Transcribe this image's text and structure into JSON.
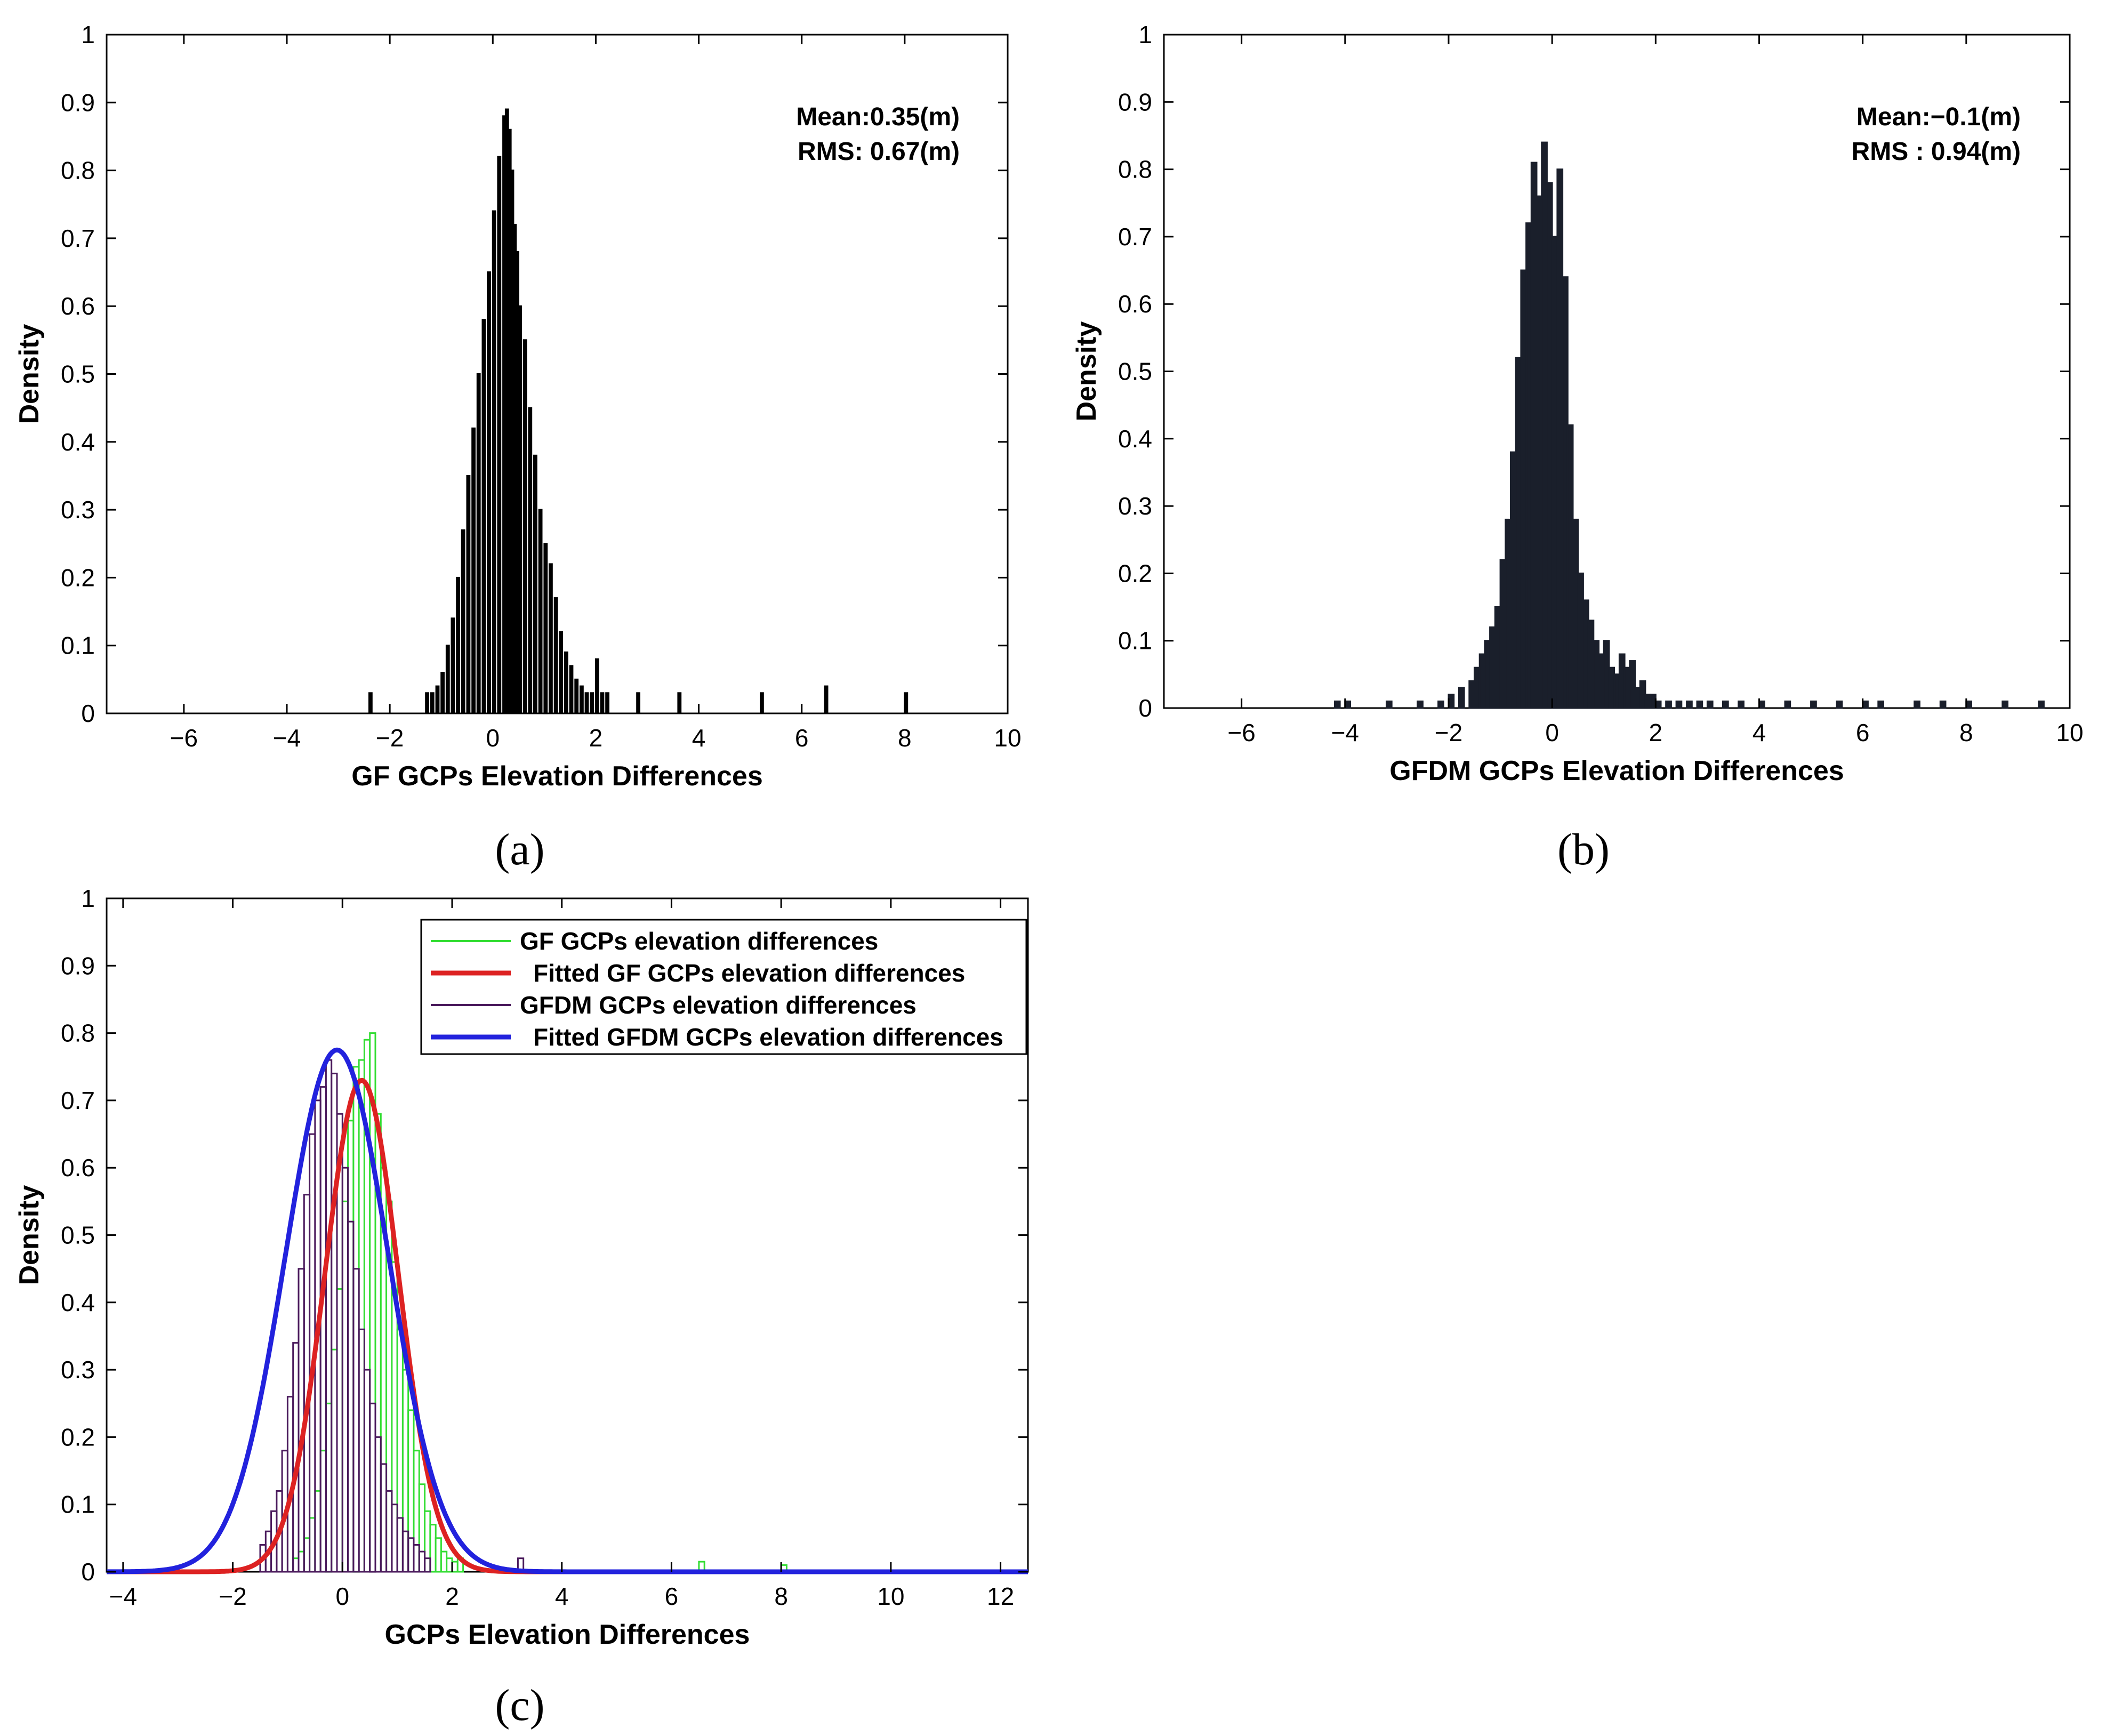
{
  "captions": [
    "(a)",
    "(b)",
    "(c)"
  ],
  "chart_data": [
    {
      "type": "histogram",
      "panel": "a",
      "title": "",
      "xlabel": "GF GCPs Elevation Differences",
      "ylabel": "Density",
      "xlim": [
        -7.5,
        10
      ],
      "ylim": [
        0,
        1
      ],
      "xticks": [
        -6,
        -4,
        -2,
        0,
        2,
        4,
        6,
        8,
        10
      ],
      "yticks": [
        0,
        0.1,
        0.2,
        0.3,
        0.4,
        0.5,
        0.6,
        0.7,
        0.8,
        0.9,
        1
      ],
      "color": "#000000",
      "annotations": [
        "Mean:0.35(m)",
        "RMS: 0.67(m)"
      ],
      "bin_width": 0.05,
      "bins_x": [
        -1.3,
        -1.2,
        -1.1,
        -1.0,
        -0.9,
        -0.8,
        -0.7,
        -0.6,
        -0.5,
        -0.4,
        -0.3,
        -0.2,
        -0.1,
        0.0,
        0.1,
        0.2,
        0.25,
        0.3,
        0.35,
        0.4,
        0.45,
        0.5,
        0.6,
        0.7,
        0.8,
        0.9,
        1.0,
        1.1,
        1.2,
        1.3,
        1.4,
        1.5,
        1.6,
        1.7,
        1.8,
        1.9,
        2.0,
        2.1,
        2.2,
        -2.4,
        2.8,
        3.6,
        5.2,
        6.45,
        8.0
      ],
      "bins_density": [
        0.03,
        0.03,
        0.04,
        0.06,
        0.1,
        0.14,
        0.2,
        0.27,
        0.35,
        0.42,
        0.5,
        0.58,
        0.65,
        0.74,
        0.82,
        0.88,
        0.89,
        0.86,
        0.8,
        0.72,
        0.68,
        0.6,
        0.55,
        0.45,
        0.38,
        0.3,
        0.25,
        0.22,
        0.17,
        0.12,
        0.09,
        0.07,
        0.05,
        0.04,
        0.03,
        0.03,
        0.08,
        0.03,
        0.03,
        0.03,
        0.03,
        0.03,
        0.03,
        0.04,
        0.03
      ]
    },
    {
      "type": "histogram",
      "panel": "b",
      "title": "",
      "xlabel": "GFDM GCPs Elevation Differences",
      "ylabel": "Density",
      "xlim": [
        -7.5,
        10
      ],
      "ylim": [
        0,
        1
      ],
      "xticks": [
        -6,
        -4,
        -2,
        0,
        2,
        4,
        6,
        8,
        10
      ],
      "yticks": [
        0,
        0.1,
        0.2,
        0.3,
        0.4,
        0.5,
        0.6,
        0.7,
        0.8,
        0.9,
        1
      ],
      "color": "#1a1f2b",
      "annotations": [
        "Mean:−0.1(m)",
        "RMS : 0.94(m)"
      ],
      "bin_width": 0.1,
      "bins_x": [
        -4.2,
        -4.0,
        -3.2,
        -2.6,
        -2.2,
        -2.0,
        -1.8,
        -1.6,
        -1.5,
        -1.4,
        -1.3,
        -1.2,
        -1.1,
        -1.0,
        -0.9,
        -0.8,
        -0.7,
        -0.6,
        -0.5,
        -0.4,
        -0.3,
        -0.2,
        -0.1,
        0.0,
        0.1,
        0.2,
        0.3,
        0.4,
        0.5,
        0.6,
        0.7,
        0.8,
        0.9,
        1.0,
        1.1,
        1.2,
        1.3,
        1.4,
        1.5,
        1.6,
        1.7,
        1.8,
        1.9,
        2.0,
        2.2,
        2.4,
        2.6,
        2.8,
        3.0,
        3.3,
        3.6,
        4.0,
        4.5,
        5.0,
        5.5,
        6.0,
        6.3,
        7.0,
        7.5,
        8.0,
        8.7,
        9.4
      ],
      "bins_density": [
        0.01,
        0.01,
        0.01,
        0.01,
        0.01,
        0.02,
        0.03,
        0.04,
        0.06,
        0.08,
        0.1,
        0.12,
        0.15,
        0.22,
        0.28,
        0.38,
        0.52,
        0.65,
        0.72,
        0.81,
        0.76,
        0.84,
        0.78,
        0.7,
        0.8,
        0.64,
        0.42,
        0.28,
        0.2,
        0.16,
        0.13,
        0.1,
        0.08,
        0.1,
        0.06,
        0.05,
        0.08,
        0.06,
        0.07,
        0.03,
        0.04,
        0.02,
        0.02,
        0.01,
        0.01,
        0.01,
        0.01,
        0.01,
        0.01,
        0.01,
        0.01,
        0.01,
        0.01,
        0.01,
        0.01,
        0.01,
        0.01,
        0.01,
        0.01,
        0.01,
        0.01,
        0.01
      ]
    },
    {
      "type": "histogram",
      "panel": "c",
      "title": "",
      "xlabel": "GCPs Elevation Differences",
      "ylabel": "Density",
      "xlim": [
        -4.3,
        12.5
      ],
      "ylim": [
        0,
        1
      ],
      "xticks": [
        -4,
        -2,
        0,
        2,
        4,
        6,
        8,
        10,
        12
      ],
      "yticks": [
        0,
        0.1,
        0.2,
        0.3,
        0.4,
        0.5,
        0.6,
        0.7,
        0.8,
        0.9,
        1
      ],
      "legend_position": "top-right",
      "bin_width": 0.1,
      "series": [
        {
          "name": "GF GCPs elevation differences",
          "kind": "histogram",
          "color": "#33dd33",
          "bins_x": [
            -0.9,
            -0.8,
            -0.7,
            -0.6,
            -0.5,
            -0.4,
            -0.3,
            -0.2,
            -0.1,
            0.0,
            0.1,
            0.2,
            0.3,
            0.4,
            0.5,
            0.6,
            0.7,
            0.8,
            0.9,
            1.0,
            1.1,
            1.2,
            1.3,
            1.4,
            1.5,
            1.6,
            1.7,
            1.8,
            1.9,
            2.0,
            2.1,
            6.5,
            8.0
          ],
          "bins_density": [
            0.02,
            0.03,
            0.05,
            0.08,
            0.12,
            0.18,
            0.25,
            0.33,
            0.42,
            0.55,
            0.67,
            0.75,
            0.76,
            0.79,
            0.8,
            0.68,
            0.6,
            0.55,
            0.46,
            0.36,
            0.3,
            0.24,
            0.18,
            0.13,
            0.09,
            0.07,
            0.05,
            0.03,
            0.02,
            0.015,
            0.02,
            0.015,
            0.01
          ]
        },
        {
          "name": "Fitted GF GCPs elevation differences",
          "kind": "line",
          "color": "#dd2222",
          "mean": 0.35,
          "rms": 0.67,
          "peak": 0.73
        },
        {
          "name": "GFDM GCPs elevation differences",
          "kind": "histogram",
          "color": "#4a1a5c",
          "bins_x": [
            -1.5,
            -1.4,
            -1.3,
            -1.2,
            -1.1,
            -1.0,
            -0.9,
            -0.8,
            -0.7,
            -0.6,
            -0.5,
            -0.4,
            -0.3,
            -0.2,
            -0.1,
            0.0,
            0.1,
            0.2,
            0.3,
            0.4,
            0.5,
            0.6,
            0.7,
            0.8,
            0.9,
            1.0,
            1.1,
            1.2,
            1.3,
            1.4,
            1.5,
            3.2
          ],
          "bins_density": [
            0.04,
            0.06,
            0.09,
            0.12,
            0.18,
            0.26,
            0.34,
            0.45,
            0.56,
            0.65,
            0.7,
            0.72,
            0.76,
            0.74,
            0.68,
            0.6,
            0.52,
            0.45,
            0.36,
            0.3,
            0.25,
            0.2,
            0.16,
            0.12,
            0.1,
            0.08,
            0.06,
            0.05,
            0.04,
            0.03,
            0.02,
            0.02
          ]
        },
        {
          "name": "Fitted GFDM GCPs elevation differences",
          "kind": "line",
          "color": "#2222dd",
          "mean": -0.1,
          "rms": 0.94,
          "peak": 0.775
        }
      ]
    }
  ]
}
